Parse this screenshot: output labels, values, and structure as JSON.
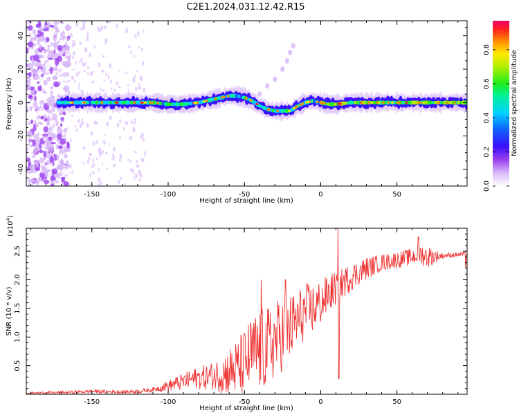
{
  "figure_title": "C2E1.2024.031.12.42.R15",
  "chart_data": [
    {
      "type": "heatmap",
      "name": "spectrogram",
      "xlabel": "Height of straight line (km)",
      "ylabel": "Frequency (Hz)",
      "xlim": [
        -193,
        96
      ],
      "ylim": [
        -50,
        49
      ],
      "xticks": [
        -150,
        -100,
        -50,
        0,
        50
      ],
      "yticks": [
        -40,
        -20,
        0,
        20,
        40
      ],
      "colorbar": {
        "label": "Normalized spectral amplitude",
        "range": [
          0,
          0.97
        ],
        "ticks": [
          0.0,
          0.2,
          0.4,
          0.6,
          0.8
        ],
        "tick_labels": [
          "0.0",
          "0.2",
          "0.4",
          "0.6",
          "0.8"
        ]
      },
      "ridge": {
        "x": [
          -170,
          -160,
          -150,
          -140,
          -130,
          -120,
          -110,
          -100,
          -90,
          -80,
          -70,
          -60,
          -55,
          -50,
          -45,
          -40,
          -35,
          -30,
          -25,
          -20,
          -15,
          -10,
          -5,
          0,
          5,
          10,
          20,
          30,
          40,
          50,
          60,
          70,
          80,
          95
        ],
        "y": [
          0,
          0,
          0,
          0,
          0,
          0,
          0,
          -1,
          -1,
          0,
          2,
          4,
          4,
          3,
          1,
          -2,
          -4,
          -5,
          -5,
          -5,
          -2,
          0,
          1,
          0,
          -1,
          -1,
          0,
          0,
          0,
          0,
          0,
          0,
          0,
          0
        ]
      },
      "side_branch": {
        "x": [
          -40,
          -35,
          -30,
          -25,
          -22,
          -20,
          -18
        ],
        "y": [
          5,
          10,
          14,
          20,
          25,
          30,
          34
        ]
      },
      "noise_region_x": [
        -193,
        -165
      ]
    },
    {
      "type": "line",
      "name": "snr",
      "xlabel": "Height of straight line (km)",
      "ylabel": "SNR (10 * v/v)",
      "scale_label": "(x10",
      "scale_exponent": "4",
      "scale_close": ")",
      "xlim": [
        -193,
        96
      ],
      "ylim": [
        0,
        2.9
      ],
      "xticks": [
        -150,
        -100,
        -50,
        0,
        50
      ],
      "yticks": [
        0.5,
        1.0,
        1.5,
        2.0,
        2.5
      ],
      "ytick_labels": [
        "0.5",
        "1.0",
        "1.5",
        "2.0",
        "2.5"
      ],
      "color": "#ee3333",
      "envelope_x": [
        -193,
        -170,
        -150,
        -130,
        -120,
        -110,
        -100,
        -90,
        -82,
        -75,
        -65,
        -55,
        -50,
        -45,
        -40,
        -35,
        -30,
        -25,
        -20,
        -15,
        -10,
        -5,
        0,
        5,
        10,
        15,
        20,
        30,
        40,
        50,
        60,
        65,
        70,
        80,
        96
      ],
      "envelope_y": [
        0.02,
        0.03,
        0.05,
        0.04,
        0.05,
        0.08,
        0.15,
        0.22,
        0.28,
        0.3,
        0.35,
        0.45,
        0.55,
        0.7,
        0.75,
        0.8,
        0.95,
        1.05,
        1.15,
        1.3,
        1.45,
        1.5,
        1.6,
        1.75,
        1.85,
        1.95,
        2.05,
        2.2,
        2.3,
        2.35,
        2.4,
        2.45,
        2.4,
        2.42,
        2.45
      ],
      "noise_amp_x": [
        -193,
        -110,
        -90,
        -70,
        -50,
        -40,
        -30,
        -20,
        -10,
        0,
        10,
        20,
        40,
        60,
        70,
        80,
        96
      ],
      "noise_amp_y": [
        0.02,
        0.04,
        0.15,
        0.25,
        0.6,
        0.75,
        0.7,
        0.6,
        0.5,
        0.4,
        0.3,
        0.25,
        0.15,
        0.15,
        0.2,
        0.05,
        0.04
      ],
      "spikes": [
        {
          "x": 11.5,
          "y": 2.9
        },
        {
          "x": 12,
          "y": 0.27
        },
        {
          "x": -39,
          "y": 2.0
        },
        {
          "x": -23,
          "y": 2.0
        },
        {
          "x": 64,
          "y": 2.75
        },
        {
          "x": 95,
          "y": 2.2
        }
      ]
    }
  ]
}
